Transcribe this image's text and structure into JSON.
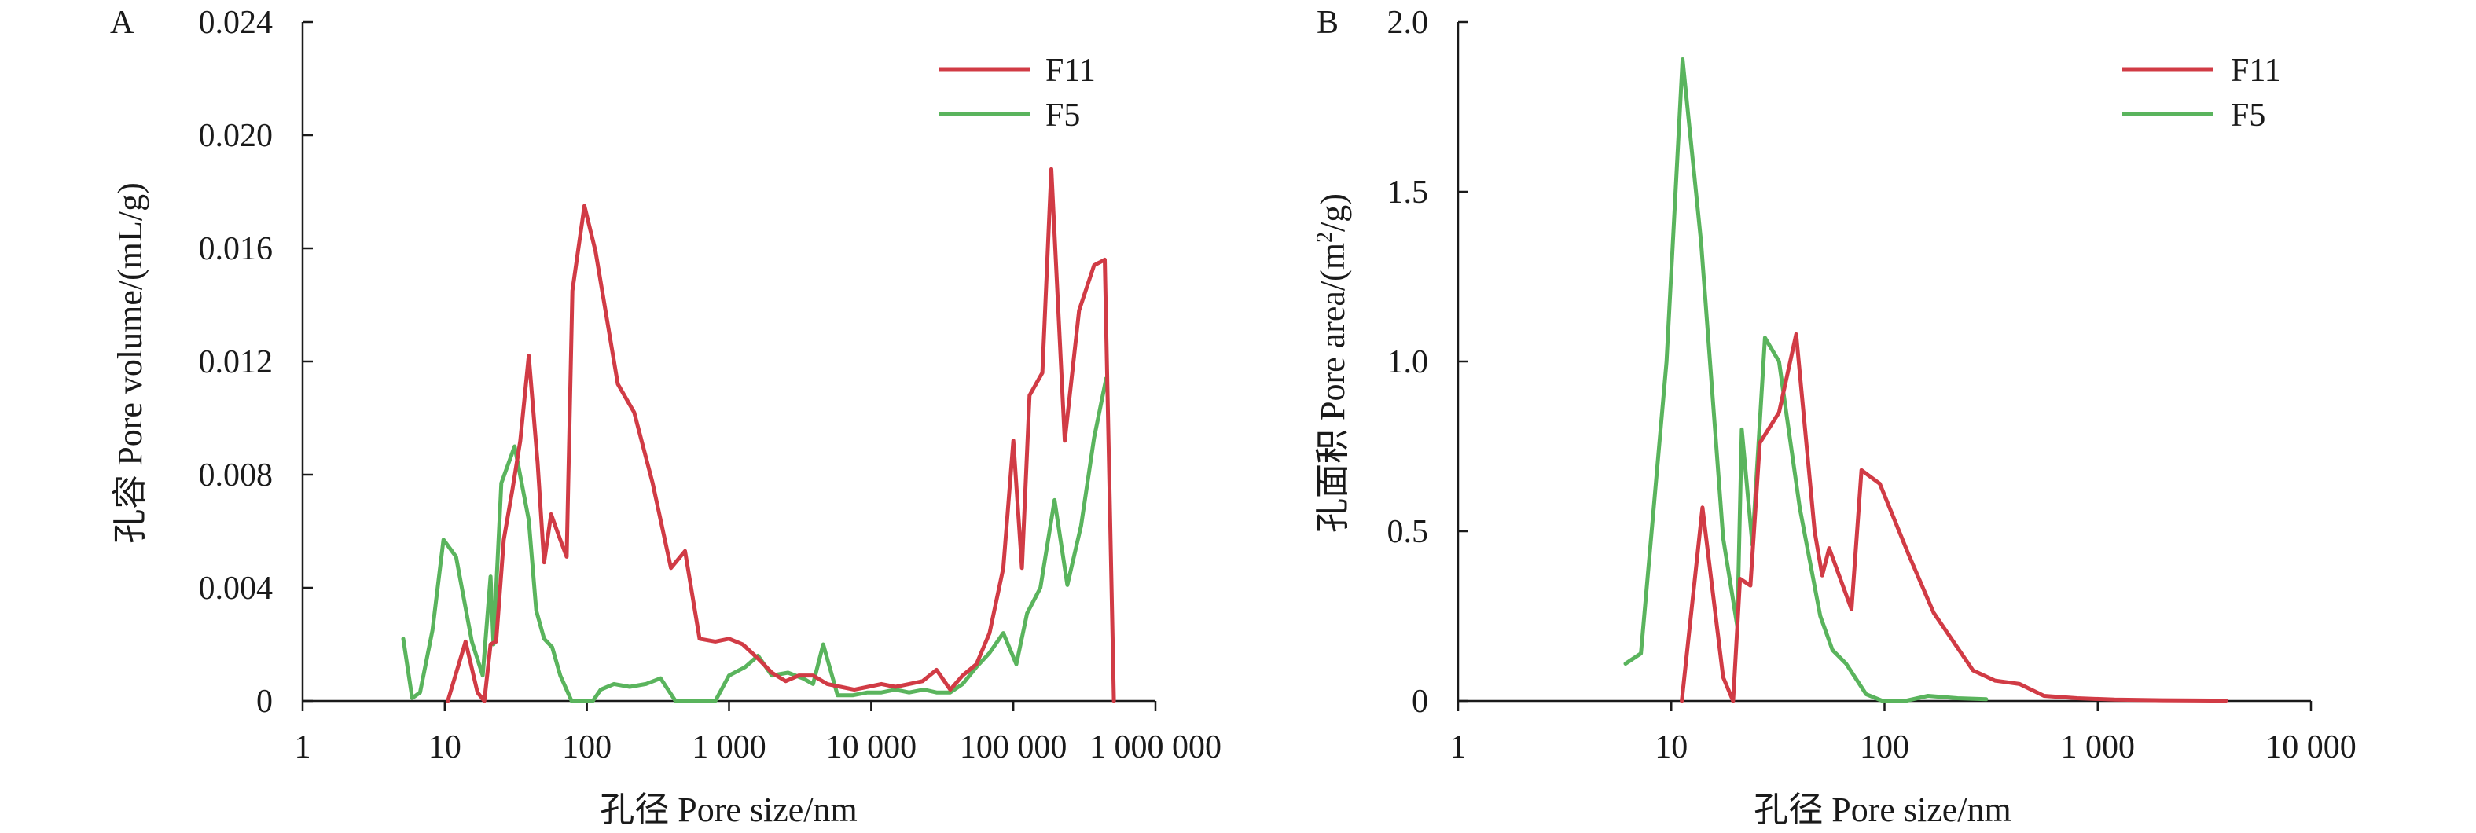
{
  "chart_data": [
    {
      "panel": "A",
      "type": "line",
      "xscale": "log",
      "xlim": [
        1,
        1000000
      ],
      "ylim": [
        0,
        0.024
      ],
      "x_ticks": [
        1,
        10,
        100,
        1000,
        10000,
        100000,
        1000000
      ],
      "x_tick_labels": [
        "1",
        "10",
        "100",
        "1 000",
        "10 000",
        "100 000",
        "1 000 000"
      ],
      "y_ticks": [
        0,
        0.004,
        0.008,
        0.012,
        0.016,
        0.02,
        0.024
      ],
      "y_tick_labels": [
        "0",
        "0.004",
        "0.008",
        "0.012",
        "0.016",
        "0.020",
        "0.024"
      ],
      "xlabel": "孔径 Pore size/nm",
      "ylabel": "孔容 Pore volume/(mL/g)",
      "legend_position": "top-right",
      "series": [
        {
          "name": "F11",
          "color": "#d13b45",
          "points": [
            [
              10.5,
              0
            ],
            [
              14,
              0.0021
            ],
            [
              17,
              0.0003
            ],
            [
              19,
              0
            ],
            [
              21,
              0.002
            ],
            [
              23,
              0.0021
            ],
            [
              26,
              0.0057
            ],
            [
              30,
              0.0075
            ],
            [
              34,
              0.0092
            ],
            [
              39,
              0.0122
            ],
            [
              45,
              0.0084
            ],
            [
              50,
              0.0049
            ],
            [
              56,
              0.0066
            ],
            [
              65,
              0.0057
            ],
            [
              72,
              0.0051
            ],
            [
              79,
              0.0145
            ],
            [
              96,
              0.0175
            ],
            [
              115,
              0.0159
            ],
            [
              165,
              0.0112
            ],
            [
              215,
              0.0102
            ],
            [
              290,
              0.0077
            ],
            [
              390,
              0.0047
            ],
            [
              490,
              0.0053
            ],
            [
              620,
              0.0022
            ],
            [
              800,
              0.0021
            ],
            [
              1000,
              0.0022
            ],
            [
              1250,
              0.002
            ],
            [
              1600,
              0.0015
            ],
            [
              2000,
              0.001
            ],
            [
              2500,
              0.0007
            ],
            [
              3100,
              0.0009
            ],
            [
              3900,
              0.0009
            ],
            [
              4900,
              0.0006
            ],
            [
              6100,
              0.0005
            ],
            [
              7600,
              0.0004
            ],
            [
              9500,
              0.0005
            ],
            [
              11800,
              0.0006
            ],
            [
              14800,
              0.0005
            ],
            [
              18500,
              0.0006
            ],
            [
              23000,
              0.0007
            ],
            [
              28800,
              0.0011
            ],
            [
              36000,
              0.0004
            ],
            [
              44000,
              0.0009
            ],
            [
              55000,
              0.0013
            ],
            [
              68000,
              0.0024
            ],
            [
              85000,
              0.0047
            ],
            [
              100000,
              0.0092
            ],
            [
              115000,
              0.0047
            ],
            [
              130000,
              0.0108
            ],
            [
              160000,
              0.0116
            ],
            [
              185000,
              0.0188
            ],
            [
              230000,
              0.0092
            ],
            [
              290000,
              0.0138
            ],
            [
              370000,
              0.0154
            ],
            [
              440000,
              0.0156
            ],
            [
              510000,
              0
            ]
          ]
        },
        {
          "name": "F5",
          "color": "#5ab45d",
          "points": [
            [
              5.1,
              0.0022
            ],
            [
              5.9,
              0.0001
            ],
            [
              6.7,
              0.0003
            ],
            [
              8.2,
              0.0025
            ],
            [
              9.8,
              0.0057
            ],
            [
              12,
              0.0051
            ],
            [
              15.5,
              0.0021
            ],
            [
              18.5,
              0.0009
            ],
            [
              21,
              0.0044
            ],
            [
              22,
              0.002
            ],
            [
              25,
              0.0077
            ],
            [
              31,
              0.009
            ],
            [
              39,
              0.0064
            ],
            [
              44,
              0.0032
            ],
            [
              50,
              0.0022
            ],
            [
              57,
              0.0019
            ],
            [
              65,
              0.0009
            ],
            [
              78,
              0
            ],
            [
              93,
              0
            ],
            [
              110,
              0
            ],
            [
              125,
              0.0004
            ],
            [
              155,
              0.0006
            ],
            [
              200,
              0.0005
            ],
            [
              260,
              0.0006
            ],
            [
              330,
              0.0008
            ],
            [
              420,
              0
            ],
            [
              520,
              0
            ],
            [
              650,
              0
            ],
            [
              800,
              0
            ],
            [
              1000,
              0.0009
            ],
            [
              1300,
              0.0012
            ],
            [
              1600,
              0.0016
            ],
            [
              2000,
              0.0009
            ],
            [
              2600,
              0.001
            ],
            [
              3300,
              0.0008
            ],
            [
              3900,
              0.0006
            ],
            [
              4600,
              0.002
            ],
            [
              5800,
              0.0002
            ],
            [
              7400,
              0.0002
            ],
            [
              9400,
              0.0003
            ],
            [
              11800,
              0.0003
            ],
            [
              14800,
              0.0004
            ],
            [
              18500,
              0.0003
            ],
            [
              23500,
              0.0004
            ],
            [
              28800,
              0.0003
            ],
            [
              36000,
              0.0003
            ],
            [
              44000,
              0.0006
            ],
            [
              55000,
              0.0012
            ],
            [
              68000,
              0.0017
            ],
            [
              85000,
              0.0024
            ],
            [
              105000,
              0.0013
            ],
            [
              125000,
              0.0031
            ],
            [
              155000,
              0.004
            ],
            [
              195000,
              0.0071
            ],
            [
              240000,
              0.0041
            ],
            [
              300000,
              0.0062
            ],
            [
              370000,
              0.0093
            ],
            [
              450000,
              0.0114
            ]
          ]
        }
      ]
    },
    {
      "panel": "B",
      "type": "line",
      "xscale": "log",
      "xlim": [
        1,
        10000
      ],
      "ylim": [
        0,
        2.0
      ],
      "x_ticks": [
        1,
        10,
        100,
        1000,
        10000
      ],
      "x_tick_labels": [
        "1",
        "10",
        "100",
        "1 000",
        "10 000"
      ],
      "y_ticks": [
        0,
        0.5,
        1.0,
        1.5,
        2.0
      ],
      "y_tick_labels": [
        "0",
        "0.5",
        "1.0",
        "1.5",
        "2.0"
      ],
      "xlabel": "孔径 Pore size/nm",
      "ylabel_main": "孔面积 Pore area/(m",
      "ylabel_sup": "2",
      "ylabel_end": "/g)",
      "legend_position": "top-right",
      "series": [
        {
          "name": "F11",
          "color": "#d13b45",
          "points": [
            [
              11.2,
              0
            ],
            [
              14,
              0.57
            ],
            [
              17.5,
              0.07
            ],
            [
              19.5,
              0
            ],
            [
              21,
              0.36
            ],
            [
              23.5,
              0.34
            ],
            [
              26,
              0.76
            ],
            [
              32,
              0.85
            ],
            [
              38.5,
              1.08
            ],
            [
              47,
              0.5
            ],
            [
              51,
              0.37
            ],
            [
              55,
              0.45
            ],
            [
              70,
              0.27
            ],
            [
              78,
              0.68
            ],
            [
              95,
              0.64
            ],
            [
              130,
              0.43
            ],
            [
              170,
              0.26
            ],
            [
              260,
              0.09
            ],
            [
              330,
              0.06
            ],
            [
              430,
              0.05
            ],
            [
              560,
              0.015
            ],
            [
              800,
              0.008
            ],
            [
              1200,
              0.004
            ],
            [
              2000,
              0.002
            ],
            [
              4000,
              0.001
            ]
          ]
        },
        {
          "name": "F5",
          "color": "#5ab45d",
          "points": [
            [
              6.1,
              0.11
            ],
            [
              7.2,
              0.14
            ],
            [
              9.5,
              1.0
            ],
            [
              11.3,
              1.89
            ],
            [
              13.8,
              1.35
            ],
            [
              17.5,
              0.48
            ],
            [
              20.4,
              0.22
            ],
            [
              21.4,
              0.8
            ],
            [
              24,
              0.46
            ],
            [
              27.5,
              1.07
            ],
            [
              32,
              1.0
            ],
            [
              40,
              0.57
            ],
            [
              50,
              0.25
            ],
            [
              57,
              0.15
            ],
            [
              66,
              0.11
            ],
            [
              82,
              0.02
            ],
            [
              98,
              0
            ],
            [
              125,
              0
            ],
            [
              160,
              0.015
            ],
            [
              220,
              0.008
            ],
            [
              300,
              0.005
            ]
          ]
        }
      ]
    }
  ]
}
